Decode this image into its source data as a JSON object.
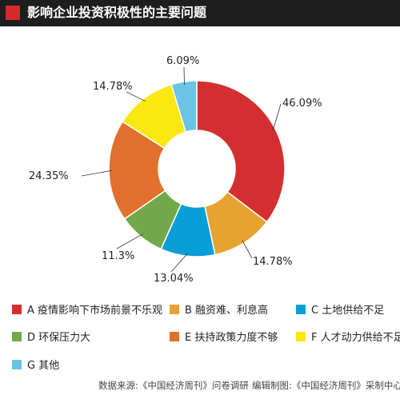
{
  "title": "影响企业投资积极性的主要问题",
  "chart_data": {
    "type": "pie",
    "donut": true,
    "categories": [
      "A 疫情影响下市场前景不乐观",
      "B 融资难、利息高",
      "C 土地供给不足",
      "D 环保压力大",
      "E 扶持政策力度不够",
      "F 人才动力供给不足",
      "G 其他"
    ],
    "values": [
      46.09,
      14.78,
      13.04,
      11.3,
      24.35,
      14.78,
      6.09
    ],
    "labels": [
      "46.09%",
      "14.78%",
      "13.04%",
      "11.3%",
      "24.35%",
      "14.78%",
      "6.09%"
    ],
    "colors": [
      "#d42f30",
      "#e8a32e",
      "#0a9ed8",
      "#72a84a",
      "#e0702b",
      "#fbe712",
      "#6cc4e4"
    ],
    "legend_position": "bottom"
  },
  "footer": {
    "source": "数据来源:《中国经济周刊》问卷调研",
    "editor": "编辑制图:《中国经济周刊》采制中心"
  }
}
